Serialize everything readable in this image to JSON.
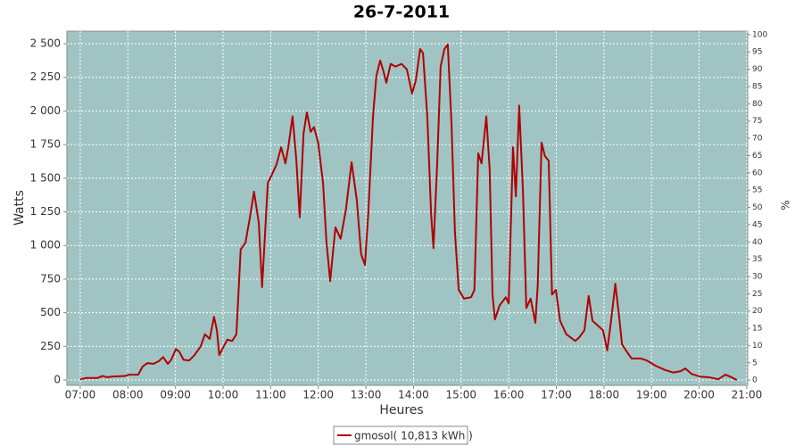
{
  "chart_data": {
    "type": "line",
    "title": "26-7-2011",
    "x_label": "Heures",
    "y_label": "Watts",
    "y2_label": "%",
    "grid": true,
    "background": "#a0c4c4",
    "legend": "bottom",
    "x": [
      7.0,
      7.13,
      7.37,
      7.47,
      7.56,
      7.66,
      7.94,
      8.03,
      8.22,
      8.31,
      8.41,
      8.54,
      8.65,
      8.74,
      8.84,
      8.91,
      9.01,
      9.08,
      9.17,
      9.29,
      9.4,
      9.53,
      9.62,
      9.72,
      9.81,
      9.87,
      9.92,
      10.0,
      10.09,
      10.19,
      10.28,
      10.37,
      10.47,
      10.56,
      10.65,
      10.75,
      10.82,
      10.94,
      11.03,
      11.12,
      11.22,
      11.31,
      11.37,
      11.46,
      11.54,
      11.61,
      11.69,
      11.76,
      11.84,
      11.91,
      12.0,
      12.1,
      12.17,
      12.25,
      12.36,
      12.47,
      12.58,
      12.7,
      12.81,
      12.9,
      12.98,
      13.05,
      13.15,
      13.22,
      13.3,
      13.37,
      13.43,
      13.52,
      13.62,
      13.75,
      13.86,
      13.97,
      14.05,
      14.14,
      14.2,
      14.29,
      14.37,
      14.42,
      14.5,
      14.57,
      14.65,
      14.72,
      14.8,
      14.87,
      14.95,
      15.06,
      15.21,
      15.28,
      15.36,
      15.43,
      15.53,
      15.6,
      15.66,
      15.71,
      15.81,
      15.94,
      16.0,
      16.09,
      16.15,
      16.22,
      16.3,
      16.37,
      16.46,
      16.56,
      16.61,
      16.69,
      16.76,
      16.84,
      16.91,
      16.99,
      17.08,
      17.21,
      17.4,
      17.49,
      17.59,
      17.68,
      17.76,
      17.87,
      17.98,
      18.07,
      18.15,
      18.24,
      18.32,
      18.38,
      18.49,
      18.58,
      18.77,
      18.9,
      19.09,
      19.28,
      19.46,
      19.61,
      19.71,
      19.84,
      20.02,
      20.21,
      20.4,
      20.49,
      20.55,
      20.68,
      20.79
    ],
    "series": [
      {
        "name": "gmosol( 10,813 kWh )",
        "color": "#b00000",
        "values": [
          5,
          15,
          15,
          30,
          20,
          25,
          30,
          40,
          40,
          100,
          125,
          120,
          140,
          170,
          120,
          150,
          230,
          210,
          150,
          145,
          185,
          250,
          340,
          305,
          470,
          370,
          185,
          240,
          300,
          290,
          340,
          970,
          1020,
          1200,
          1400,
          1170,
          690,
          1465,
          1530,
          1600,
          1730,
          1610,
          1730,
          1960,
          1630,
          1210,
          1830,
          1990,
          1845,
          1880,
          1760,
          1465,
          1035,
          735,
          1135,
          1050,
          1265,
          1620,
          1335,
          935,
          855,
          1235,
          1960,
          2260,
          2375,
          2295,
          2210,
          2350,
          2330,
          2350,
          2310,
          2130,
          2230,
          2460,
          2430,
          1960,
          1235,
          980,
          1630,
          2330,
          2460,
          2495,
          1895,
          1100,
          670,
          605,
          615,
          670,
          1685,
          1610,
          1960,
          1565,
          635,
          450,
          555,
          615,
          570,
          1730,
          1365,
          2040,
          1400,
          535,
          605,
          425,
          705,
          1765,
          1665,
          1630,
          635,
          670,
          440,
          340,
          290,
          320,
          370,
          625,
          440,
          405,
          370,
          220,
          440,
          715,
          470,
          265,
          205,
          160,
          160,
          145,
          105,
          75,
          55,
          65,
          85,
          45,
          25,
          20,
          5,
          25,
          40,
          20,
          0
        ]
      }
    ],
    "xlim": [
      6.72,
      21.02
    ],
    "xticks": [
      {
        "value": 7,
        "label": "07:00"
      },
      {
        "value": 8,
        "label": "08:00"
      },
      {
        "value": 9,
        "label": "09:00"
      },
      {
        "value": 10,
        "label": "10:00"
      },
      {
        "value": 11,
        "label": "11:00"
      },
      {
        "value": 12,
        "label": "12:00"
      },
      {
        "value": 13,
        "label": "13:00"
      },
      {
        "value": 14,
        "label": "14:00"
      },
      {
        "value": 15,
        "label": "15:00"
      },
      {
        "value": 16,
        "label": "16:00"
      },
      {
        "value": 17,
        "label": "17:00"
      },
      {
        "value": 18,
        "label": "18:00"
      },
      {
        "value": 19,
        "label": "19:00"
      },
      {
        "value": 20,
        "label": "20:00"
      },
      {
        "value": 21,
        "label": "21:00"
      }
    ],
    "ylim": [
      -40,
      2593
    ],
    "yticks": [
      0,
      250,
      500,
      750,
      {
        "value": 1000,
        "label": "1 000"
      },
      {
        "value": 1250,
        "label": "1 250"
      },
      {
        "value": 1500,
        "label": "1 500"
      },
      {
        "value": 1750,
        "label": "1 750"
      },
      {
        "value": 2000,
        "label": "2 000"
      },
      {
        "value": 2250,
        "label": "2 250"
      },
      {
        "value": 2500,
        "label": "2 500"
      }
    ],
    "y2lim": [
      -1.5,
      101
    ],
    "y2ticks": [
      0,
      5,
      10,
      15,
      20,
      25,
      30,
      35,
      40,
      45,
      50,
      55,
      60,
      65,
      70,
      75,
      80,
      85,
      90,
      95,
      100
    ]
  }
}
